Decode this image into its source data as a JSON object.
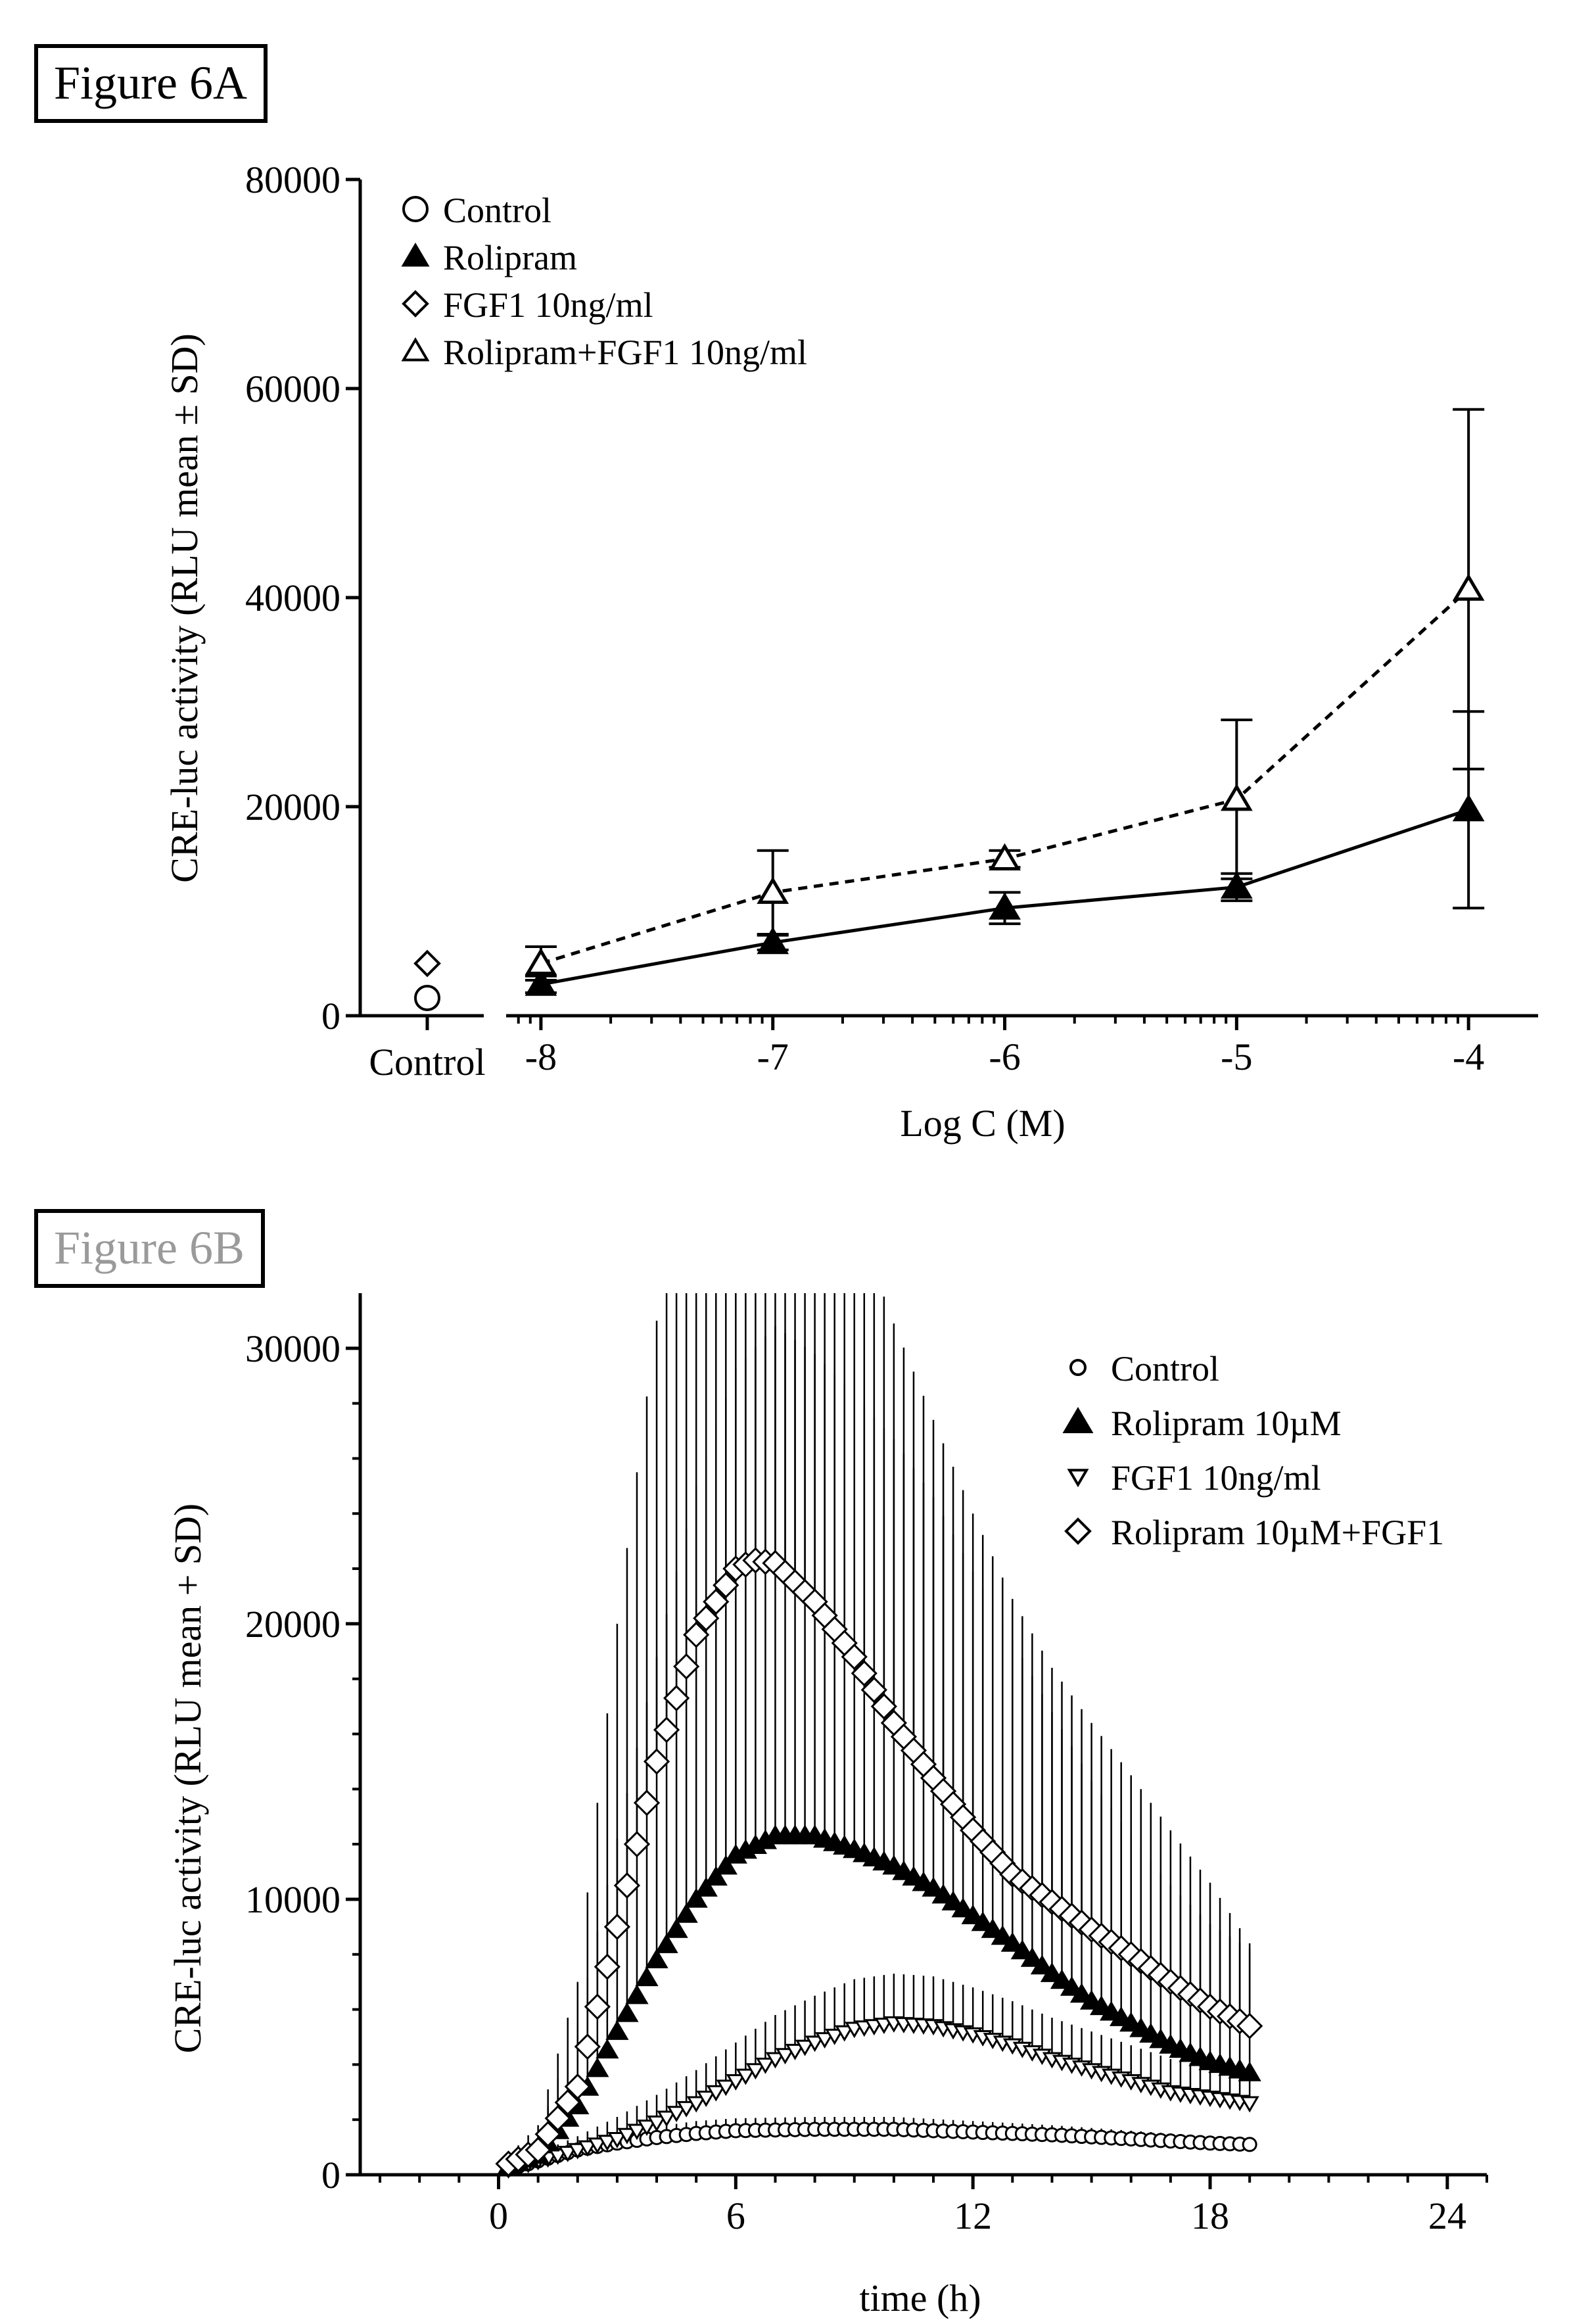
{
  "panel_a": {
    "label": "Figure 6A",
    "chart_data": {
      "type": "line",
      "ylabel": "CRE-luc activity (RLU mean ± SD)",
      "xlabel": "Log C (M)",
      "ylim": [
        0,
        80000
      ],
      "yticks": [
        0,
        20000,
        40000,
        60000,
        80000
      ],
      "yticklabels": [
        "0",
        "20000",
        "40000",
        "60000",
        "80000"
      ],
      "xlim": [
        -8.15,
        -3.7
      ],
      "xticks": [
        -8,
        -7,
        -6,
        -5,
        -4
      ],
      "xticklabels": [
        "-8",
        "-7",
        "-6",
        "-5",
        "-4"
      ],
      "control_label": "Control",
      "controls": [
        {
          "name": "Control",
          "marker": "circle-open",
          "value": 1700
        },
        {
          "name": "FGF1 10ng/ml",
          "marker": "diamond-open",
          "value": 5000
        }
      ],
      "series": [
        {
          "name": "Rolipram",
          "marker": "triangle-filled",
          "line": "solid",
          "x": [
            -8,
            -7,
            -6,
            -5,
            -4
          ],
          "y": [
            3000,
            7000,
            10300,
            12300,
            19700
          ],
          "sd": [
            800,
            700,
            1500,
            1300,
            9400
          ]
        },
        {
          "name": "Rolipram+FGF1 10ng/ml",
          "marker": "triangle-open",
          "line": "dashed",
          "x": [
            -8,
            -7,
            -6,
            -5,
            -4
          ],
          "y": [
            5000,
            11800,
            15000,
            20700,
            40800
          ],
          "sd": [
            1600,
            4000,
            800,
            7600,
            17200
          ]
        }
      ],
      "legend": [
        {
          "label": "Control",
          "marker": "circle-open"
        },
        {
          "label": "Rolipram",
          "marker": "triangle-filled"
        },
        {
          "label": "FGF1 10ng/ml",
          "marker": "diamond-open"
        },
        {
          "label": "Rolipram+FGF1 10ng/ml",
          "marker": "triangle-open"
        }
      ],
      "legend_position": "top-left"
    }
  },
  "panel_b": {
    "label": "Figure 6B",
    "chart_data": {
      "type": "scatter",
      "ylabel": "CRE-luc activity (RLU mean + SD)",
      "xlabel": "time (h)",
      "xlim": [
        -3.5,
        25
      ],
      "ylim": [
        0,
        32000
      ],
      "xticks": [
        0,
        6,
        12,
        18,
        24
      ],
      "xticklabels": [
        "0",
        "6",
        "12",
        "18",
        "24"
      ],
      "yticks": [
        0,
        10000,
        20000,
        30000
      ],
      "yticklabels": [
        "0",
        "10000",
        "20000",
        "30000"
      ],
      "sampling_interval_h": 0.25,
      "time_range_h": [
        0.25,
        19
      ],
      "series": [
        {
          "name": "Control",
          "marker": "circle-open",
          "t": [
            0.25,
            1,
            2,
            3,
            4,
            5,
            6,
            8,
            10,
            12,
            14,
            16,
            18,
            19
          ],
          "y": [
            200,
            500,
            900,
            1150,
            1350,
            1500,
            1600,
            1650,
            1650,
            1550,
            1450,
            1300,
            1150,
            1100
          ],
          "sd": [
            100,
            150,
            250,
            350,
            400,
            450,
            450,
            450,
            450,
            400,
            350,
            300,
            250,
            250
          ]
        },
        {
          "name": "Rolipram 10µM",
          "marker": "triangle-filled",
          "t": [
            0.25,
            1,
            2,
            3,
            4,
            5,
            6,
            7,
            8,
            9,
            10,
            11,
            12,
            13,
            14,
            15,
            16,
            17,
            18,
            19
          ],
          "y": [
            300,
            700,
            2500,
            5200,
            7800,
            10000,
            11600,
            12300,
            12300,
            11800,
            11200,
            10400,
            9400,
            8400,
            7300,
            6300,
            5500,
            4700,
            4100,
            3700
          ],
          "sd": [
            200,
            800,
            3000,
            7000,
            11000,
            15000,
            17700,
            18500,
            17500,
            16500,
            15500,
            14200,
            12500,
            11000,
            9500,
            8000,
            6800,
            5800,
            5000,
            4500
          ]
        },
        {
          "name": "FGF1 10ng/ml",
          "marker": "triangle-down-open",
          "t": [
            0.25,
            1,
            2,
            3,
            4,
            5,
            6,
            7,
            8,
            9,
            10,
            11,
            12,
            13,
            14,
            15,
            16,
            17,
            18,
            19
          ],
          "y": [
            200,
            500,
            900,
            1300,
            1900,
            2600,
            3400,
            4200,
            4800,
            5300,
            5500,
            5400,
            5100,
            4700,
            4200,
            3800,
            3400,
            3000,
            2800,
            2600
          ],
          "sd": [
            100,
            300,
            500,
            800,
            1000,
            1200,
            1400,
            1600,
            1700,
            1800,
            1800,
            1800,
            1700,
            1600,
            1500,
            1400,
            1300,
            1200,
            1100,
            1100
          ]
        },
        {
          "name": "Rolipram 10µM+FGF1",
          "marker": "diamond-open",
          "t": [
            0.25,
            1,
            2,
            3,
            4,
            5,
            6,
            6.5,
            7,
            8,
            9,
            10,
            11,
            12,
            13,
            14,
            15,
            16,
            17,
            18,
            19
          ],
          "y": [
            400,
            900,
            3200,
            9000,
            15000,
            19600,
            22000,
            22300,
            22200,
            20800,
            18800,
            16400,
            14400,
            12500,
            10900,
            9900,
            8900,
            8000,
            7000,
            6100,
            5400
          ],
          "sd": [
            300,
            900,
            3800,
            11000,
            16000,
            18000,
            19000,
            19000,
            18800,
            17500,
            16000,
            14500,
            13000,
            11500,
            10000,
            8500,
            7500,
            6500,
            5500,
            4500,
            3000
          ]
        }
      ],
      "legend": [
        {
          "label": "Control",
          "marker": "circle-open"
        },
        {
          "label": "Rolipram 10µM",
          "marker": "triangle-filled"
        },
        {
          "label": "FGF1 10ng/ml",
          "marker": "triangle-down-open"
        },
        {
          "label": "Rolipram 10µM+FGF1",
          "marker": "diamond-open"
        }
      ],
      "legend_position": "top-right"
    }
  }
}
